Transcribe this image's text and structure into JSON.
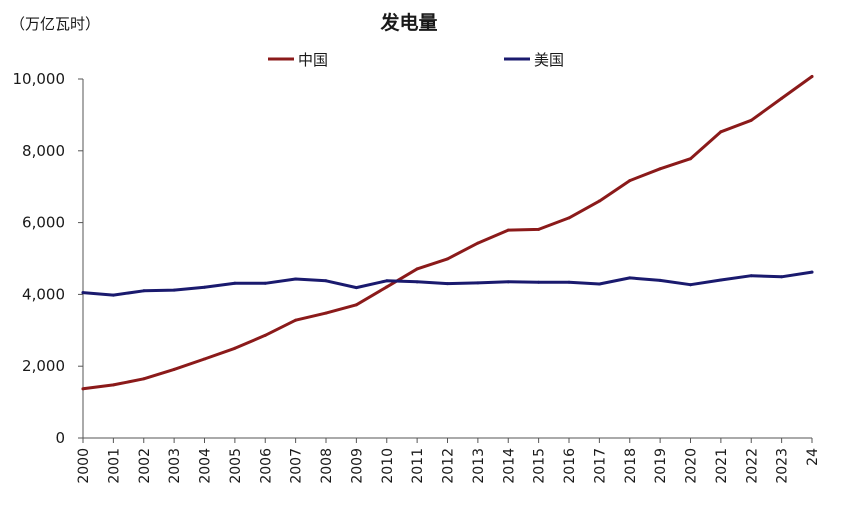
{
  "chart_data": {
    "type": "line",
    "title": "发电量",
    "unit_label": "（万亿瓦时）",
    "ylabel": "",
    "xlabel": "",
    "ylim": [
      0,
      10000
    ],
    "yticks": [
      0,
      2000,
      4000,
      6000,
      8000,
      10000
    ],
    "ytick_labels": [
      "0",
      "2,000",
      "4,000",
      "6,000",
      "8,000",
      "10,000"
    ],
    "grid": false,
    "legend_position": "top",
    "categories": [
      "2000",
      "2001",
      "2002",
      "2003",
      "2004",
      "2005",
      "2006",
      "2007",
      "2008",
      "2009",
      "2010",
      "2011",
      "2012",
      "2013",
      "2014",
      "2015",
      "2016",
      "2017",
      "2018",
      "2019",
      "2020",
      "2021",
      "2022",
      "2023",
      "24"
    ],
    "series": [
      {
        "name": "中国",
        "color": "#8b1a1a",
        "values": [
          1370,
          1480,
          1650,
          1910,
          2200,
          2500,
          2860,
          3280,
          3480,
          3710,
          4210,
          4710,
          4990,
          5430,
          5790,
          5810,
          6130,
          6600,
          7170,
          7500,
          7780,
          8530,
          8850,
          9460,
          10070
        ]
      },
      {
        "name": "美国",
        "color": "#1a1a6e",
        "values": [
          4050,
          3980,
          4100,
          4120,
          4200,
          4310,
          4310,
          4430,
          4380,
          4190,
          4380,
          4350,
          4300,
          4320,
          4350,
          4340,
          4340,
          4290,
          4460,
          4390,
          4270,
          4400,
          4520,
          4490,
          4620
        ]
      }
    ]
  }
}
